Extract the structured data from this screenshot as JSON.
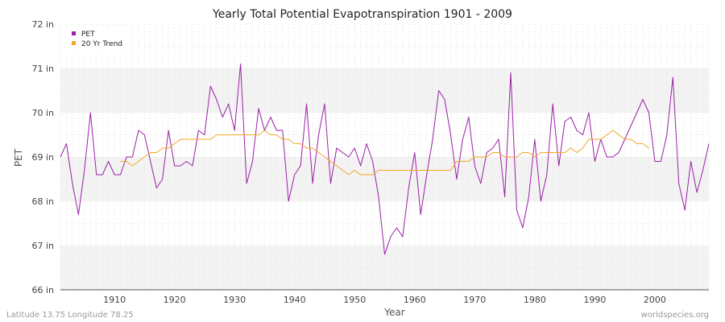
{
  "chart_data": {
    "type": "line",
    "title": "Yearly Total Potential Evapotranspiration 1901 - 2009",
    "xlabel": "Year",
    "ylabel": "PET",
    "xlim": [
      1901,
      2009
    ],
    "ylim": [
      66,
      72
    ],
    "x_ticks": [
      1910,
      1920,
      1930,
      1940,
      1950,
      1960,
      1970,
      1980,
      1990,
      2000
    ],
    "y_ticks": [
      "66 in",
      "67 in",
      "68 in",
      "69 in",
      "70 in",
      "71 in",
      "72 in"
    ],
    "grid": true,
    "legend_position": "top-left",
    "series": [
      {
        "name": "PET",
        "color": "#9b1fa8",
        "x": [
          1901,
          1902,
          1903,
          1904,
          1905,
          1906,
          1907,
          1908,
          1909,
          1910,
          1911,
          1912,
          1913,
          1914,
          1915,
          1916,
          1917,
          1918,
          1919,
          1920,
          1921,
          1922,
          1923,
          1924,
          1925,
          1926,
          1927,
          1928,
          1929,
          1930,
          1931,
          1932,
          1933,
          1934,
          1935,
          1936,
          1937,
          1938,
          1939,
          1940,
          1941,
          1942,
          1943,
          1944,
          1945,
          1946,
          1947,
          1948,
          1949,
          1950,
          1951,
          1952,
          1953,
          1954,
          1955,
          1956,
          1957,
          1958,
          1959,
          1960,
          1961,
          1962,
          1963,
          1964,
          1965,
          1966,
          1967,
          1968,
          1969,
          1970,
          1971,
          1972,
          1973,
          1974,
          1975,
          1976,
          1977,
          1978,
          1979,
          1980,
          1981,
          1982,
          1983,
          1984,
          1985,
          1986,
          1987,
          1988,
          1989,
          1990,
          1991,
          1992,
          1993,
          1994,
          1995,
          1996,
          1997,
          1998,
          1999,
          2000,
          2001,
          2002,
          2003,
          2004,
          2005,
          2006,
          2007,
          2008,
          2009
        ],
        "values": [
          69.0,
          69.3,
          68.4,
          67.7,
          68.7,
          70.0,
          68.6,
          68.6,
          68.9,
          68.6,
          68.6,
          69.0,
          69.0,
          69.6,
          69.5,
          68.9,
          68.3,
          68.5,
          69.6,
          68.8,
          68.8,
          68.9,
          68.8,
          69.6,
          69.5,
          70.6,
          70.3,
          69.9,
          70.2,
          69.6,
          71.1,
          68.4,
          68.9,
          70.1,
          69.6,
          69.9,
          69.6,
          69.6,
          68.0,
          68.6,
          68.8,
          70.2,
          68.4,
          69.5,
          70.2,
          68.4,
          69.2,
          69.1,
          69.0,
          69.2,
          68.8,
          69.3,
          68.9,
          68.1,
          66.8,
          67.2,
          67.4,
          67.2,
          68.3,
          69.1,
          67.7,
          68.6,
          69.4,
          70.5,
          70.3,
          69.5,
          68.5,
          69.4,
          69.9,
          68.8,
          68.4,
          69.1,
          69.2,
          69.4,
          68.1,
          70.9,
          67.8,
          67.4,
          68.1,
          69.4,
          68.0,
          68.6,
          70.2,
          68.8,
          69.8,
          69.9,
          69.6,
          69.5,
          70.0,
          68.9,
          69.4,
          69.0,
          69.0,
          69.1,
          69.4,
          69.7,
          70.0,
          70.3,
          70.0,
          68.9,
          68.9,
          69.5,
          70.8,
          68.4,
          67.8,
          68.9,
          68.2,
          68.7,
          69.3
        ]
      },
      {
        "name": "20 Yr Trend",
        "color": "#f5a623",
        "x": [
          1911,
          1912,
          1913,
          1914,
          1915,
          1916,
          1917,
          1918,
          1919,
          1920,
          1921,
          1922,
          1923,
          1924,
          1925,
          1926,
          1927,
          1928,
          1929,
          1930,
          1931,
          1932,
          1933,
          1934,
          1935,
          1936,
          1937,
          1938,
          1939,
          1940,
          1941,
          1942,
          1943,
          1944,
          1945,
          1946,
          1947,
          1948,
          1949,
          1950,
          1951,
          1952,
          1953,
          1954,
          1955,
          1956,
          1957,
          1958,
          1959,
          1960,
          1961,
          1962,
          1963,
          1964,
          1965,
          1966,
          1967,
          1968,
          1969,
          1970,
          1971,
          1972,
          1973,
          1974,
          1975,
          1976,
          1977,
          1978,
          1979,
          1980,
          1981,
          1982,
          1983,
          1984,
          1985,
          1986,
          1987,
          1988,
          1989,
          1990,
          1991,
          1992,
          1993,
          1994,
          1995,
          1996,
          1997,
          1998,
          1999
        ],
        "values": [
          68.9,
          68.9,
          68.8,
          68.9,
          69.0,
          69.1,
          69.1,
          69.2,
          69.2,
          69.3,
          69.4,
          69.4,
          69.4,
          69.4,
          69.4,
          69.4,
          69.5,
          69.5,
          69.5,
          69.5,
          69.5,
          69.5,
          69.5,
          69.5,
          69.6,
          69.5,
          69.5,
          69.4,
          69.4,
          69.3,
          69.3,
          69.2,
          69.2,
          69.1,
          69.0,
          68.9,
          68.8,
          68.7,
          68.6,
          68.7,
          68.6,
          68.6,
          68.6,
          68.7,
          68.7,
          68.7,
          68.7,
          68.7,
          68.7,
          68.7,
          68.7,
          68.7,
          68.7,
          68.7,
          68.7,
          68.7,
          68.9,
          68.9,
          68.9,
          69.0,
          69.0,
          69.0,
          69.1,
          69.1,
          69.0,
          69.0,
          69.0,
          69.1,
          69.1,
          69.0,
          69.1,
          69.1,
          69.1,
          69.1,
          69.1,
          69.2,
          69.1,
          69.2,
          69.4,
          69.4,
          69.4,
          69.5,
          69.6,
          69.5,
          69.4,
          69.4,
          69.3,
          69.3,
          69.2
        ]
      }
    ]
  },
  "footer": {
    "left": "Latitude 13.75 Longitude 78.25",
    "right": "worldspecies.org"
  }
}
